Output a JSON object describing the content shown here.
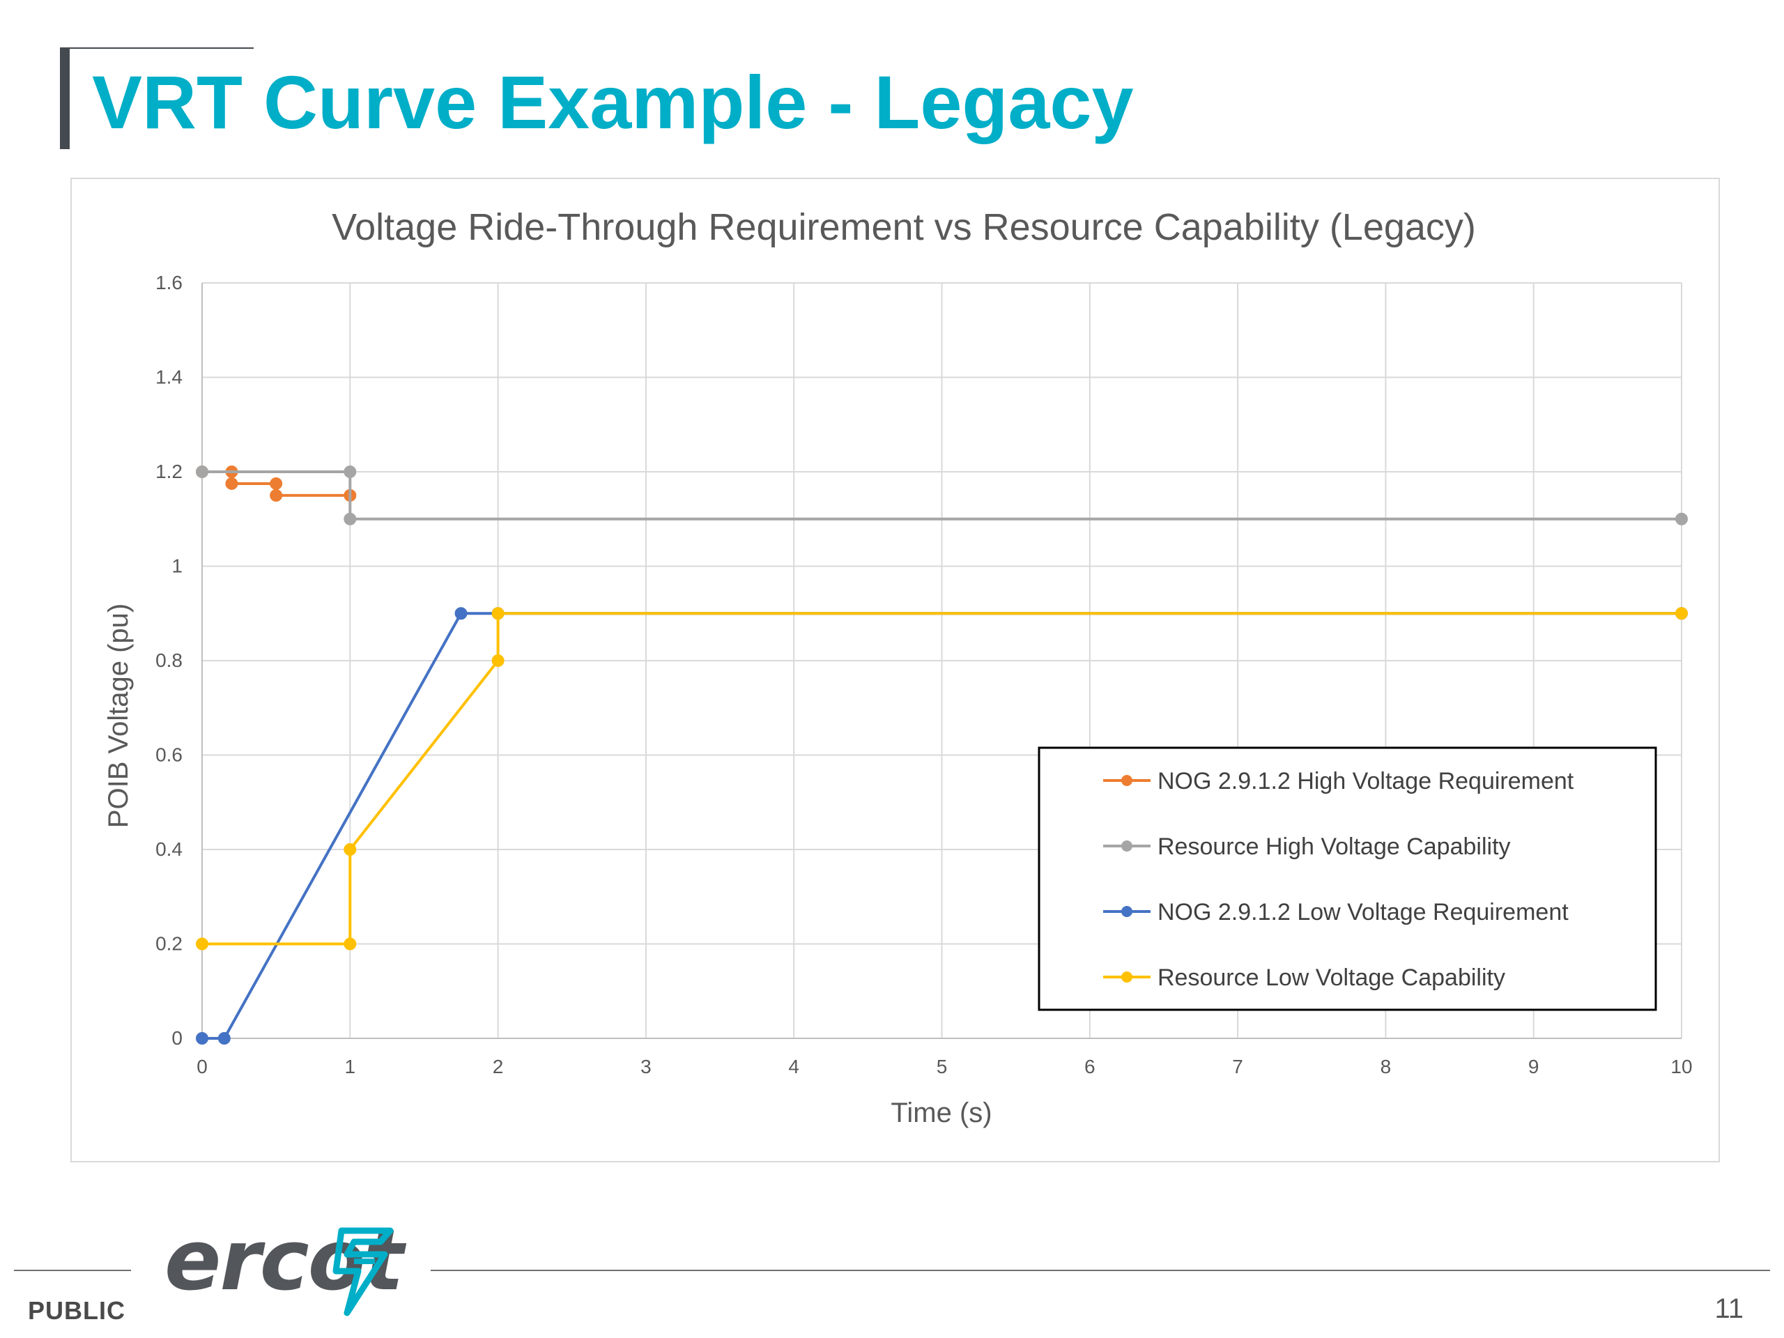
{
  "slide": {
    "title": "VRT Curve Example - Legacy",
    "footer_label": "PUBLIC",
    "page_number": "11",
    "logo_text": "ercot",
    "logo_mark_icon": "ercot-lightning-icon",
    "title_color": "#00aec7"
  },
  "chart_data": {
    "type": "line",
    "title": "Voltage Ride-Through Requirement vs Resource Capability (Legacy)",
    "xlabel": "Time (s)",
    "ylabel": "POIB Voltage (pu)",
    "xlim": [
      0,
      10
    ],
    "ylim": [
      0,
      1.6
    ],
    "xticks": [
      "0",
      "1",
      "2",
      "3",
      "4",
      "5",
      "6",
      "7",
      "8",
      "9",
      "10"
    ],
    "yticks": [
      "0",
      "0.2",
      "0.4",
      "0.6",
      "0.8",
      "1",
      "1.2",
      "1.4",
      "1.6"
    ],
    "grid": true,
    "legend_position": "bottom-right",
    "series": [
      {
        "name": "NOG 2.9.1.2 High Voltage Requirement",
        "color": "#ed7d31",
        "points": [
          [
            0,
            1.2
          ],
          [
            0.2,
            1.2
          ],
          [
            0.2,
            1.175
          ],
          [
            0.5,
            1.175
          ],
          [
            0.5,
            1.15
          ],
          [
            1,
            1.15
          ]
        ]
      },
      {
        "name": "Resource High Voltage Capability",
        "color": "#a5a5a5",
        "points": [
          [
            0,
            1.2
          ],
          [
            1,
            1.2
          ],
          [
            1,
            1.1
          ],
          [
            10,
            1.1
          ]
        ]
      },
      {
        "name": "NOG 2.9.1.2 Low Voltage Requirement",
        "color": "#4472c4",
        "points": [
          [
            0,
            0
          ],
          [
            0.15,
            0
          ],
          [
            1.75,
            0.9
          ],
          [
            2,
            0.9
          ],
          [
            10,
            0.9
          ]
        ]
      },
      {
        "name": "Resource Low Voltage Capability",
        "color": "#ffc000",
        "points": [
          [
            0,
            0.2
          ],
          [
            1,
            0.2
          ],
          [
            1,
            0.4
          ],
          [
            2,
            0.8
          ],
          [
            2,
            0.9
          ],
          [
            10,
            0.9
          ]
        ]
      }
    ]
  }
}
